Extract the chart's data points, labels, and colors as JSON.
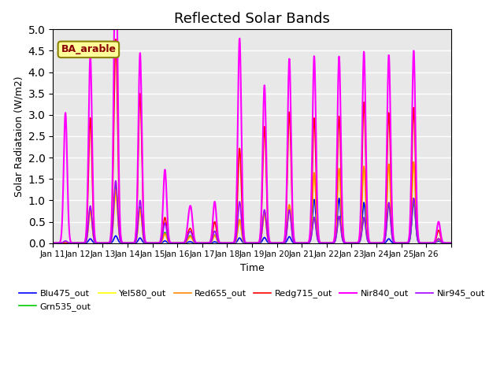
{
  "title": "Reflected Solar Bands",
  "ylabel": "Solar Radiataion (W/m2)",
  "xlabel": "Time",
  "annotation": "BA_arable",
  "ylim": [
    0,
    5.0
  ],
  "yticks": [
    0.0,
    0.5,
    1.0,
    1.5,
    2.0,
    2.5,
    3.0,
    3.5,
    4.0,
    4.5,
    5.0
  ],
  "background_color": "#e8e8e8",
  "grid_color": "#ffffff",
  "series": {
    "Blu475_out": {
      "color": "#0000ff",
      "lw": 1.2
    },
    "Grn535_out": {
      "color": "#00cc00",
      "lw": 1.2
    },
    "Yel580_out": {
      "color": "#ffff00",
      "lw": 1.2
    },
    "Red655_out": {
      "color": "#ff8800",
      "lw": 1.2
    },
    "Redg715_out": {
      "color": "#ff0000",
      "lw": 1.2
    },
    "Nir840_out": {
      "color": "#ff00ff",
      "lw": 1.5
    },
    "Nir945_out": {
      "color": "#aa00ff",
      "lw": 1.2
    }
  },
  "xtick_positions": [
    0,
    1,
    2,
    3,
    4,
    5,
    6,
    7,
    8,
    9,
    10,
    11,
    12,
    13,
    14,
    15,
    16
  ],
  "xtick_labels": [
    "Jan 11",
    "Jan 12",
    "Jan 13",
    "Jan 14",
    "Jan 15",
    "Jan 16",
    "Jan 17",
    "Jan 18",
    "Jan 19",
    "Jan 20",
    "Jan 21",
    "Jan 22",
    "Jan 23",
    "Jan 24",
    "Jan 25",
    "Jan 26",
    ""
  ],
  "days": 16,
  "points_per_day": 96,
  "legend_fontsize": 8,
  "title_fontsize": 13
}
